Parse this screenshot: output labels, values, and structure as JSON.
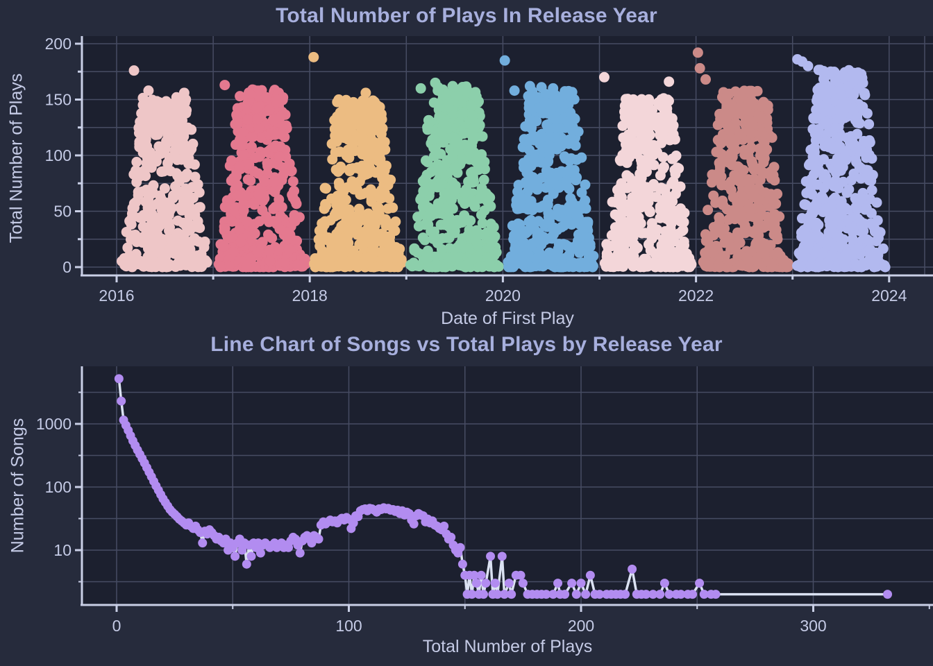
{
  "colors": {
    "page_bg": "#262b3c",
    "plot_bg": "#1c202f",
    "grid": "#474c63",
    "axis": "#c9cfe6",
    "tick_text": "#c5cbe6",
    "title_text": "#a7afdd"
  },
  "chart_data": [
    {
      "type": "strip",
      "title": "Total Number of Plays In Release Year",
      "xlabel": "Date of First Play",
      "ylabel": "Total Number of Plays",
      "ylim": [
        0,
        200
      ],
      "xlim_years": [
        2016,
        2024.45
      ],
      "yticks": [
        0,
        50,
        100,
        150,
        200
      ],
      "y_grid_step": 25,
      "xticks": [
        2016,
        2018,
        2020,
        2022,
        2024
      ],
      "x_minor_ticks": [
        2017,
        2019,
        2021,
        2023
      ],
      "grid": true,
      "legend": "none",
      "clusters": [
        {
          "year": 2016,
          "color": "#eec6c7",
          "n": 400,
          "top": 152,
          "outliers": [
            [
              176,
              0.18
            ],
            [
              158,
              0.33
            ],
            [
              152,
              0.62
            ],
            [
              156,
              0.7
            ]
          ]
        },
        {
          "year": 2017,
          "color": "#e4798f",
          "n": 440,
          "top": 160,
          "outliers": [
            [
              163,
              0.12
            ],
            [
              155,
              0.38
            ],
            [
              152,
              0.55
            ]
          ]
        },
        {
          "year": 2018,
          "color": "#ecbc82",
          "n": 440,
          "top": 150,
          "outliers": [
            [
              188,
              0.04
            ],
            [
              156,
              0.58
            ],
            [
              150,
              0.3
            ]
          ]
        },
        {
          "year": 2019,
          "color": "#8ccfab",
          "n": 460,
          "top": 162,
          "outliers": [
            [
              165,
              0.3
            ],
            [
              162,
              0.48
            ],
            [
              160,
              0.15
            ]
          ]
        },
        {
          "year": 2020,
          "color": "#72aedd",
          "n": 460,
          "top": 158,
          "outliers": [
            [
              185,
              0.02
            ],
            [
              162,
              0.28
            ],
            [
              161,
              0.4
            ],
            [
              160,
              0.52
            ],
            [
              158,
              0.12
            ]
          ]
        },
        {
          "year": 2021,
          "color": "#f3d6d9",
          "n": 420,
          "top": 152,
          "outliers": [
            [
              170,
              0.05
            ],
            [
              166,
              0.72
            ]
          ]
        },
        {
          "year": 2022,
          "color": "#cb8a88",
          "n": 440,
          "top": 158,
          "outliers": [
            [
              192,
              0.02
            ],
            [
              178,
              0.04
            ],
            [
              168,
              0.1
            ]
          ]
        },
        {
          "year": 2023,
          "color": "#b2b9ef",
          "n": 540,
          "top": 178,
          "outliers": [
            [
              186,
              0.05
            ],
            [
              184,
              0.1
            ],
            [
              180,
              0.16
            ]
          ]
        }
      ]
    },
    {
      "type": "line",
      "title": "Line Chart of Songs vs Total Plays by Release Year",
      "xlabel": "Total Number of Plays",
      "ylabel": "Number of Songs",
      "yscale": "log",
      "yticks": [
        10,
        100,
        1000
      ],
      "y_gridlines": [
        3162,
        1000,
        316.2,
        100,
        31.62,
        10,
        3.162
      ],
      "xticks": [
        0,
        100,
        200,
        300
      ],
      "x_minor_ticks": [
        50,
        150,
        250,
        350
      ],
      "x_grid_step": 50,
      "grid": true,
      "line_color": "#dbe2f2",
      "marker_color": "#b28cf0",
      "points": [
        [
          1,
          5200
        ],
        [
          2,
          2300
        ],
        [
          3,
          1150
        ],
        [
          4,
          950
        ],
        [
          5,
          790
        ],
        [
          6,
          650
        ],
        [
          7,
          540
        ],
        [
          8,
          455
        ],
        [
          9,
          385
        ],
        [
          10,
          330
        ],
        [
          11,
          282
        ],
        [
          12,
          240
        ],
        [
          13,
          203
        ],
        [
          14,
          172
        ],
        [
          15,
          146
        ],
        [
          16,
          123
        ],
        [
          17,
          104
        ],
        [
          18,
          89
        ],
        [
          19,
          76
        ],
        [
          20,
          65
        ],
        [
          21,
          57
        ],
        [
          22,
          50
        ],
        [
          23,
          44
        ],
        [
          24,
          40
        ],
        [
          25,
          37
        ],
        [
          26,
          34
        ],
        [
          27,
          31
        ],
        [
          28,
          29
        ],
        [
          29,
          27
        ],
        [
          30,
          25
        ],
        [
          31,
          27
        ],
        [
          32,
          24
        ],
        [
          33,
          22
        ],
        [
          34,
          24
        ],
        [
          35,
          21
        ],
        [
          36,
          19
        ],
        [
          37,
          13
        ],
        [
          38,
          20
        ],
        [
          39,
          18
        ],
        [
          40,
          21
        ],
        [
          41,
          19
        ],
        [
          42,
          17
        ],
        [
          43,
          15
        ],
        [
          44,
          16
        ],
        [
          45,
          14
        ],
        [
          46,
          13
        ],
        [
          47,
          15
        ],
        [
          48,
          10
        ],
        [
          49,
          13
        ],
        [
          50,
          11
        ],
        [
          51,
          8
        ],
        [
          52,
          13
        ],
        [
          53,
          15
        ],
        [
          54,
          10
        ],
        [
          55,
          13
        ],
        [
          56,
          6
        ],
        [
          57,
          12
        ],
        [
          58,
          8
        ],
        [
          59,
          13
        ],
        [
          60,
          11
        ],
        [
          61,
          13
        ],
        [
          62,
          9
        ],
        [
          63,
          12
        ],
        [
          64,
          13
        ],
        [
          65,
          12
        ],
        [
          66,
          11
        ],
        [
          67,
          12
        ],
        [
          68,
          13
        ],
        [
          69,
          11
        ],
        [
          70,
          12
        ],
        [
          71,
          13
        ],
        [
          72,
          11
        ],
        [
          73,
          12
        ],
        [
          74,
          11
        ],
        [
          75,
          14
        ],
        [
          76,
          16
        ],
        [
          77,
          15
        ],
        [
          78,
          12
        ],
        [
          79,
          9
        ],
        [
          80,
          14
        ],
        [
          81,
          16
        ],
        [
          82,
          17
        ],
        [
          83,
          15
        ],
        [
          84,
          13
        ],
        [
          85,
          17
        ],
        [
          86,
          16
        ],
        [
          87,
          15
        ],
        [
          88,
          25
        ],
        [
          89,
          28
        ],
        [
          90,
          26
        ],
        [
          91,
          28
        ],
        [
          92,
          30
        ],
        [
          93,
          28
        ],
        [
          94,
          29
        ],
        [
          95,
          27
        ],
        [
          96,
          30
        ],
        [
          97,
          32
        ],
        [
          98,
          30
        ],
        [
          99,
          33
        ],
        [
          100,
          31
        ],
        [
          101,
          22
        ],
        [
          102,
          27
        ],
        [
          103,
          35
        ],
        [
          104,
          34
        ],
        [
          105,
          42
        ],
        [
          106,
          44
        ],
        [
          107,
          45
        ],
        [
          108,
          42
        ],
        [
          109,
          46
        ],
        [
          110,
          45
        ],
        [
          111,
          43
        ],
        [
          112,
          40
        ],
        [
          113,
          45
        ],
        [
          114,
          44
        ],
        [
          115,
          47
        ],
        [
          116,
          45
        ],
        [
          117,
          46
        ],
        [
          118,
          43
        ],
        [
          119,
          44
        ],
        [
          120,
          41
        ],
        [
          121,
          43
        ],
        [
          122,
          38
        ],
        [
          123,
          42
        ],
        [
          124,
          36
        ],
        [
          125,
          40
        ],
        [
          126,
          38
        ],
        [
          127,
          30
        ],
        [
          128,
          26
        ],
        [
          129,
          35
        ],
        [
          130,
          38
        ],
        [
          131,
          36
        ],
        [
          132,
          35
        ],
        [
          133,
          28
        ],
        [
          134,
          31
        ],
        [
          135,
          27
        ],
        [
          136,
          29
        ],
        [
          137,
          25
        ],
        [
          138,
          24
        ],
        [
          139,
          22
        ],
        [
          140,
          21
        ],
        [
          141,
          24
        ],
        [
          142,
          18
        ],
        [
          143,
          15
        ],
        [
          144,
          16
        ],
        [
          145,
          12
        ],
        [
          146,
          10
        ],
        [
          147,
          9
        ],
        [
          148,
          11
        ],
        [
          149,
          6
        ],
        [
          150,
          4
        ],
        [
          151,
          2
        ],
        [
          152,
          4
        ],
        [
          153,
          2
        ],
        [
          154,
          4
        ],
        [
          155,
          3
        ],
        [
          156,
          2
        ],
        [
          157,
          4
        ],
        [
          158,
          2
        ],
        [
          159,
          3
        ],
        [
          161,
          8
        ],
        [
          162,
          2
        ],
        [
          163,
          3
        ],
        [
          164,
          2
        ],
        [
          166,
          8
        ],
        [
          167,
          2
        ],
        [
          169,
          3
        ],
        [
          170,
          2
        ],
        [
          172,
          4
        ],
        [
          174,
          4
        ],
        [
          175,
          3
        ],
        [
          177,
          2
        ],
        [
          179,
          2
        ],
        [
          181,
          2
        ],
        [
          183,
          2
        ],
        [
          185,
          2
        ],
        [
          188,
          2
        ],
        [
          190,
          3
        ],
        [
          191,
          2
        ],
        [
          193,
          2
        ],
        [
          196,
          3
        ],
        [
          198,
          2
        ],
        [
          200,
          3
        ],
        [
          202,
          2
        ],
        [
          204,
          4
        ],
        [
          206,
          2
        ],
        [
          208,
          2
        ],
        [
          211,
          2
        ],
        [
          213,
          2
        ],
        [
          215,
          2
        ],
        [
          217,
          2
        ],
        [
          219,
          2
        ],
        [
          222,
          5
        ],
        [
          224,
          2
        ],
        [
          226,
          2
        ],
        [
          228,
          2
        ],
        [
          231,
          2
        ],
        [
          234,
          2
        ],
        [
          236,
          3
        ],
        [
          238,
          2
        ],
        [
          241,
          2
        ],
        [
          243,
          2
        ],
        [
          246,
          2
        ],
        [
          248,
          2
        ],
        [
          251,
          3
        ],
        [
          253,
          2
        ],
        [
          256,
          2
        ],
        [
          258,
          2
        ],
        [
          332,
          2
        ]
      ]
    }
  ]
}
